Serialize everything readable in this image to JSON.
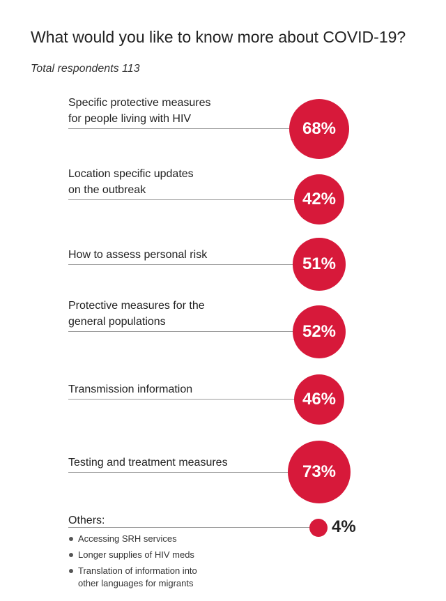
{
  "title": "What would you like to know more about COVID-19?",
  "subtitle": "Total respondents 113",
  "colors": {
    "accent": "#d7193a",
    "text": "#222222",
    "rule": "#9a9a9a"
  },
  "chart_data": {
    "type": "bubble-list",
    "title": "What would you like to know more about COVID-19?",
    "subtitle": "Total respondents 113",
    "unit": "%",
    "categories": [
      "Specific protective measures for people living with HIV",
      "Location specific updates on the outbreak",
      "How to assess personal risk",
      "Protective measures for the general populations",
      "Transmission information",
      "Testing and treatment measures",
      "Others"
    ],
    "values": [
      68,
      42,
      51,
      52,
      46,
      73,
      4
    ],
    "items": [
      {
        "label": "Specific protective measures\nfor people living with HIV",
        "value": 68,
        "display": "68%"
      },
      {
        "label": "Location specific updates\non the outbreak",
        "value": 42,
        "display": "42%"
      },
      {
        "label": "How to assess personal risk",
        "value": 51,
        "display": "51%"
      },
      {
        "label": "Protective measures for the\ngeneral populations",
        "value": 52,
        "display": "52%"
      },
      {
        "label": "Transmission information",
        "value": 46,
        "display": "46%"
      },
      {
        "label": "Testing and treatment measures",
        "value": 73,
        "display": "73%"
      }
    ],
    "others": {
      "label": "Others:",
      "value": 4,
      "display": "4%",
      "details": [
        "Accessing SRH services",
        "Longer supplies of HIV meds",
        "Translation of information into\nother languages for migrants"
      ]
    }
  }
}
